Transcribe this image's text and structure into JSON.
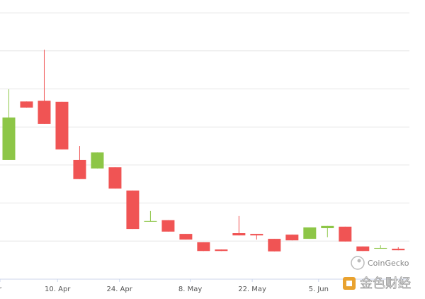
{
  "chart_data": {
    "type": "candlestick",
    "x": [
      0,
      4,
      8,
      12,
      16,
      20,
      24,
      28,
      32,
      36,
      40,
      44,
      48,
      52,
      56,
      60,
      64,
      68,
      72,
      76,
      80,
      84,
      88
    ],
    "open": [
      3.13,
      4.67,
      4.69,
      4.66,
      3.13,
      2.91,
      2.94,
      2.33,
      1.51,
      1.55,
      1.19,
      0.97,
      0.78,
      1.21,
      1.19,
      1.06,
      1.17,
      1.06,
      1.34,
      1.38,
      0.86,
      0.8,
      0.8
    ],
    "high": [
      4.99,
      4.67,
      6.03,
      4.66,
      3.5,
      3.33,
      2.94,
      2.33,
      1.79,
      1.55,
      1.19,
      0.97,
      0.78,
      1.66,
      1.19,
      1.06,
      1.17,
      1.36,
      1.4,
      1.38,
      0.86,
      0.89,
      0.84
    ],
    "low": [
      3.13,
      4.51,
      4.08,
      3.41,
      2.63,
      2.91,
      2.38,
      1.32,
      1.51,
      1.25,
      1.04,
      0.74,
      0.74,
      1.15,
      1.04,
      0.73,
      1.02,
      1.06,
      1.1,
      0.99,
      0.74,
      0.8,
      0.76
    ],
    "close": [
      4.25,
      4.51,
      4.08,
      3.41,
      2.63,
      3.33,
      2.38,
      1.32,
      1.53,
      1.25,
      1.04,
      0.74,
      0.74,
      1.15,
      1.15,
      0.73,
      1.02,
      1.36,
      1.4,
      0.99,
      0.74,
      0.82,
      0.76
    ],
    "up_color": "#8dc647",
    "down_color": "#f05454",
    "xlim": [
      -2,
      91
    ],
    "xticks": [
      {
        "value": -2,
        "label": "r"
      },
      {
        "value": 11,
        "label": "10. Apr"
      },
      {
        "value": 25,
        "label": "24. Apr"
      },
      {
        "value": 41,
        "label": "8. May"
      },
      {
        "value": 55,
        "label": "22. May"
      },
      {
        "value": 70,
        "label": "5. Jun"
      }
    ],
    "ylim": [
      0,
      7.3
    ],
    "yticks": [
      0,
      1,
      2,
      3,
      4,
      5,
      6,
      7
    ],
    "grid": true,
    "watermarks": [
      "CoinGecko",
      "金色财经"
    ]
  }
}
